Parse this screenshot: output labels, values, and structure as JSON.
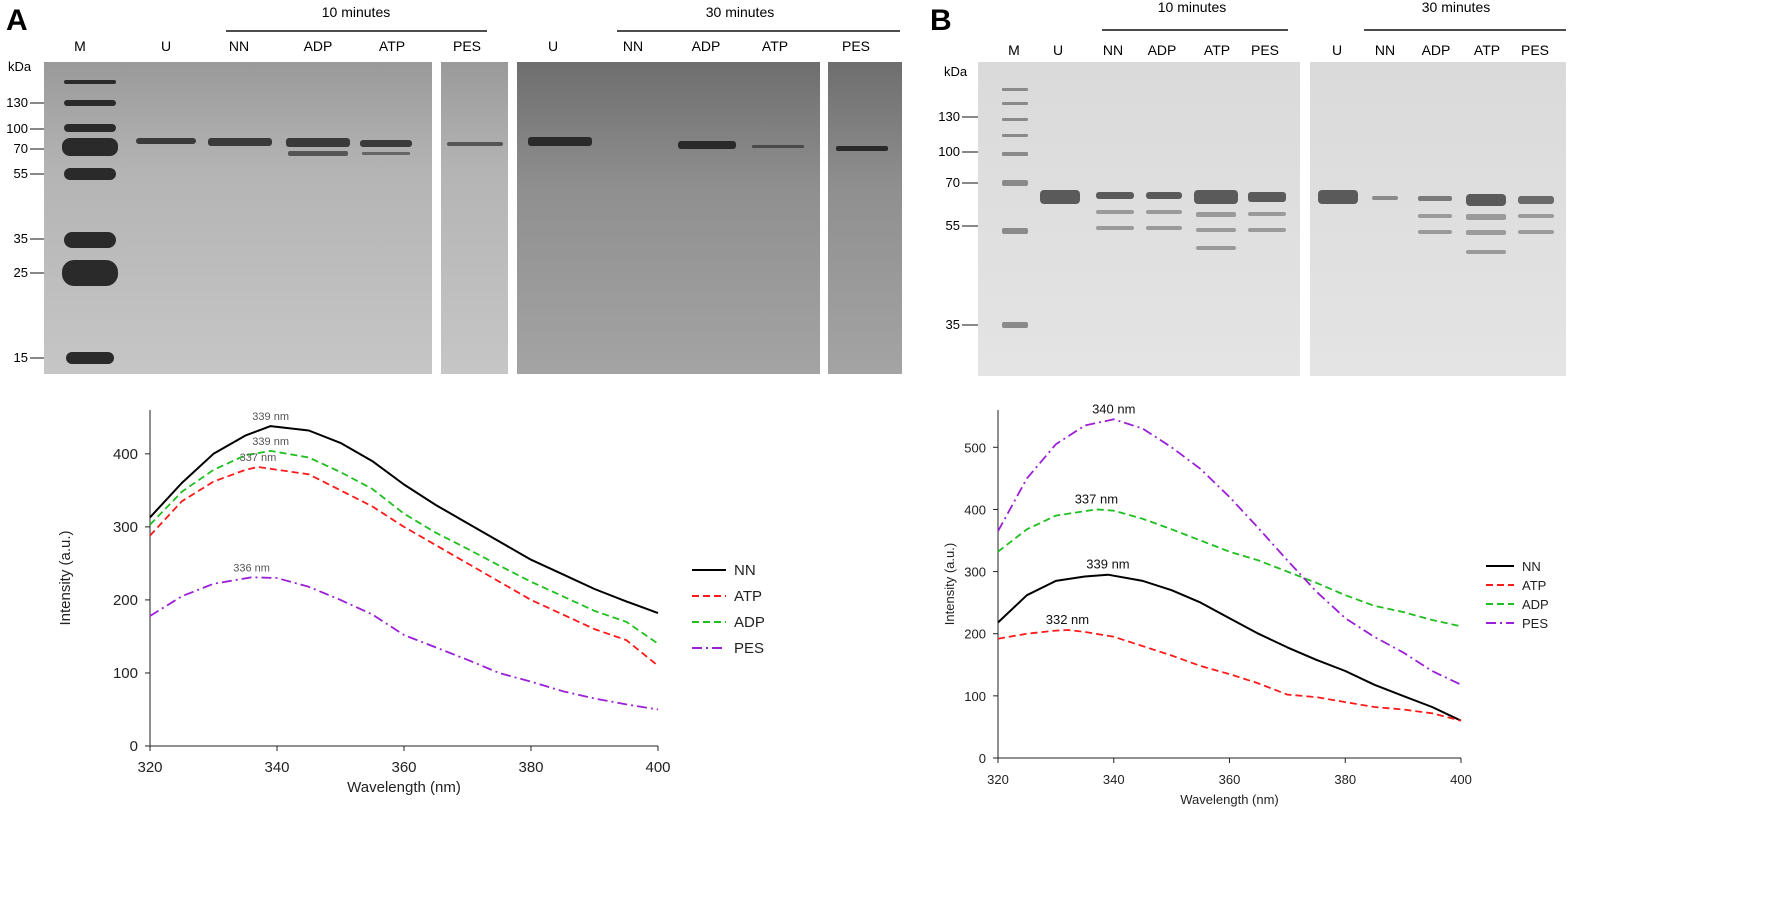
{
  "panels": [
    {
      "letter": "A",
      "gel": {
        "kda_label": "kDa",
        "markers": [
          "130",
          "100",
          "70",
          "55",
          "35",
          "25",
          "15"
        ],
        "group_labels": [
          "10 minutes",
          "30 minutes"
        ],
        "lane_labels": [
          "M",
          "U",
          "NN",
          "ADP",
          "ATP",
          "PES",
          "U",
          "NN",
          "ADP",
          "ATP",
          "PES"
        ]
      }
    },
    {
      "letter": "B",
      "gel": {
        "kda_label": "kDa",
        "markers": [
          "130",
          "100",
          "70",
          "55",
          "35"
        ],
        "group_labels": [
          "10 minutes",
          "30 minutes"
        ],
        "lane_labels": [
          "M",
          "U",
          "NN",
          "ADP",
          "ATP",
          "PES",
          "U",
          "NN",
          "ADP",
          "ATP",
          "PES"
        ]
      }
    }
  ],
  "colors": {
    "NN": "#000000",
    "ATP": "#ff1a1a",
    "ADP": "#1fbf1f",
    "PES": "#9a1fd6"
  },
  "chart_data": [
    {
      "type": "line",
      "panel": "A",
      "xlabel": "Wavelength (nm)",
      "ylabel": "Intensity (a.u.)",
      "xlim": [
        320,
        400
      ],
      "ylim": [
        0,
        460
      ],
      "xticks": [
        "320",
        "340",
        "360",
        "380",
        "400"
      ],
      "yticks": [
        "0",
        "100",
        "200",
        "300",
        "400"
      ],
      "legend_position": "right",
      "series": [
        {
          "name": "NN",
          "style": "solid",
          "x": [
            320,
            325,
            330,
            335,
            339,
            345,
            350,
            355,
            360,
            365,
            370,
            375,
            380,
            385,
            390,
            395,
            400
          ],
          "y": [
            313,
            360,
            400,
            425,
            438,
            432,
            415,
            390,
            358,
            330,
            305,
            280,
            255,
            235,
            215,
            198,
            182
          ]
        },
        {
          "name": "ATP",
          "style": "dashed",
          "x": [
            320,
            325,
            330,
            335,
            337,
            345,
            350,
            355,
            360,
            365,
            370,
            375,
            380,
            385,
            390,
            395,
            400
          ],
          "y": [
            288,
            335,
            362,
            378,
            382,
            372,
            350,
            328,
            300,
            275,
            250,
            225,
            200,
            180,
            160,
            145,
            110
          ]
        },
        {
          "name": "ADP",
          "style": "dashed",
          "x": [
            320,
            325,
            330,
            335,
            339,
            345,
            350,
            355,
            360,
            365,
            370,
            375,
            380,
            385,
            390,
            395,
            400
          ],
          "y": [
            303,
            348,
            378,
            398,
            404,
            395,
            375,
            352,
            318,
            292,
            270,
            247,
            225,
            205,
            185,
            170,
            140
          ]
        },
        {
          "name": "PES",
          "style": "dash-dot",
          "x": [
            320,
            325,
            330,
            336,
            340,
            345,
            350,
            355,
            360,
            365,
            370,
            375,
            380,
            385,
            390,
            395,
            400
          ],
          "y": [
            178,
            205,
            222,
            231,
            230,
            218,
            200,
            180,
            152,
            135,
            118,
            100,
            88,
            75,
            65,
            57,
            50
          ]
        }
      ],
      "annotations": [
        {
          "text": "339 nm",
          "x": 339,
          "y": 438
        },
        {
          "text": "339 nm",
          "x": 339,
          "y": 404
        },
        {
          "text": "337 nm",
          "x": 337,
          "y": 382
        },
        {
          "text": "336 nm",
          "x": 336,
          "y": 231
        }
      ]
    },
    {
      "type": "line",
      "panel": "B",
      "xlabel": "Wavelength (nm)",
      "ylabel": "Intensity (a.u.)",
      "xlim": [
        320,
        400
      ],
      "ylim": [
        0,
        560
      ],
      "xticks": [
        "320",
        "340",
        "360",
        "380",
        "400"
      ],
      "yticks": [
        "0",
        "100",
        "200",
        "300",
        "400",
        "500"
      ],
      "legend_position": "right",
      "series": [
        {
          "name": "NN",
          "style": "solid",
          "x": [
            320,
            325,
            330,
            335,
            339,
            345,
            350,
            355,
            360,
            365,
            370,
            375,
            380,
            385,
            390,
            395,
            400
          ],
          "y": [
            218,
            262,
            285,
            292,
            295,
            285,
            270,
            250,
            225,
            200,
            178,
            158,
            140,
            118,
            100,
            82,
            60
          ]
        },
        {
          "name": "ATP",
          "style": "dashed",
          "x": [
            320,
            325,
            330,
            332,
            335,
            340,
            345,
            350,
            355,
            360,
            365,
            370,
            375,
            380,
            385,
            390,
            395,
            400
          ],
          "y": [
            192,
            200,
            205,
            206,
            203,
            195,
            180,
            165,
            148,
            135,
            120,
            102,
            98,
            90,
            82,
            78,
            72,
            60
          ]
        },
        {
          "name": "ADP",
          "style": "dashed",
          "x": [
            320,
            325,
            330,
            337,
            340,
            345,
            350,
            355,
            360,
            365,
            370,
            375,
            380,
            385,
            390,
            395,
            400
          ],
          "y": [
            332,
            368,
            390,
            400,
            398,
            385,
            368,
            350,
            332,
            318,
            300,
            282,
            262,
            245,
            235,
            222,
            212
          ]
        },
        {
          "name": "PES",
          "style": "dash-dot",
          "x": [
            320,
            325,
            330,
            335,
            340,
            345,
            350,
            355,
            360,
            365,
            370,
            375,
            380,
            385,
            390,
            395,
            400
          ],
          "y": [
            365,
            450,
            505,
            535,
            545,
            530,
            500,
            465,
            420,
            370,
            318,
            268,
            225,
            195,
            170,
            140,
            118
          ]
        }
      ],
      "annotations": [
        {
          "text": "340 nm",
          "x": 340,
          "y": 545
        },
        {
          "text": "337 nm",
          "x": 337,
          "y": 400
        },
        {
          "text": "339 nm",
          "x": 339,
          "y": 295
        },
        {
          "text": "332 nm",
          "x": 332,
          "y": 206
        }
      ]
    }
  ]
}
